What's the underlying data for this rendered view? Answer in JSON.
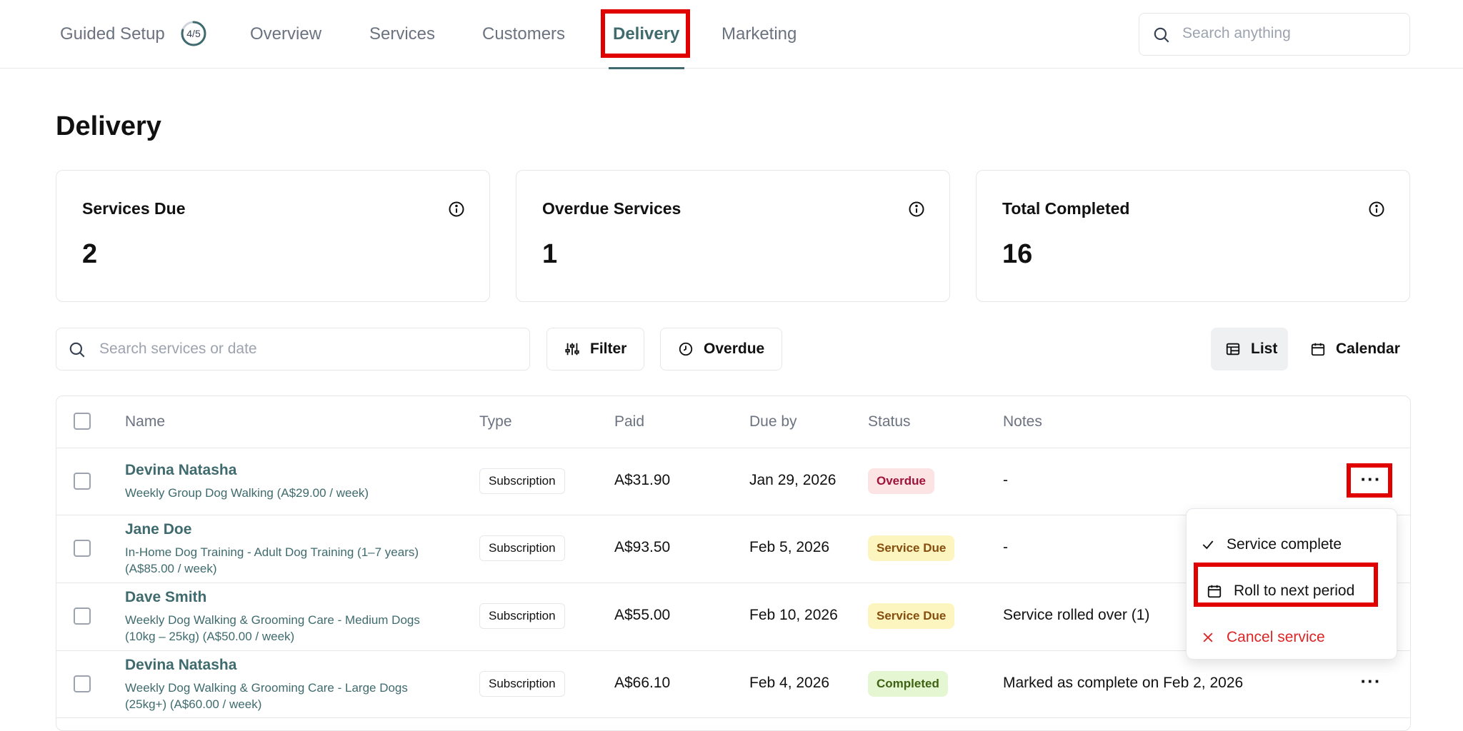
{
  "nav": {
    "items": [
      {
        "label": "Guided Setup"
      },
      {
        "label": "Overview"
      },
      {
        "label": "Services"
      },
      {
        "label": "Customers"
      },
      {
        "label": "Delivery"
      },
      {
        "label": "Marketing"
      }
    ],
    "setup_progress": "4/5",
    "setup_progress_fraction": 0.8,
    "active": "Delivery",
    "search_placeholder": "Search anything"
  },
  "page": {
    "title": "Delivery"
  },
  "stats": [
    {
      "title": "Services Due",
      "value": "2"
    },
    {
      "title": "Overdue Services",
      "value": "1"
    },
    {
      "title": "Total Completed",
      "value": "16"
    }
  ],
  "toolbar": {
    "search_placeholder": "Search services or date",
    "filter_label": "Filter",
    "overdue_label": "Overdue",
    "list_label": "List",
    "calendar_label": "Calendar"
  },
  "table": {
    "headers": {
      "name": "Name",
      "type": "Type",
      "paid": "Paid",
      "due_by": "Due by",
      "status": "Status",
      "notes": "Notes"
    },
    "rows": [
      {
        "name": "Devina Natasha",
        "service": "Weekly Group Dog Walking (A$29.00 / week)",
        "type": "Subscription",
        "paid": "A$31.90",
        "due_by": "Jan 29, 2026",
        "status": "Overdue",
        "notes": "-"
      },
      {
        "name": "Jane Doe",
        "service": "In-Home Dog Training - Adult Dog Training (1–7 years) (A$85.00 / week)",
        "type": "Subscription",
        "paid": "A$93.50",
        "due_by": "Feb 5, 2026",
        "status": "Service Due",
        "notes": "-"
      },
      {
        "name": "Dave Smith",
        "service": "Weekly Dog Walking & Grooming Care - Medium Dogs (10kg – 25kg) (A$50.00 / week)",
        "type": "Subscription",
        "paid": "A$55.00",
        "due_by": "Feb 10, 2026",
        "status": "Service Due",
        "notes": "Service rolled over (1)"
      },
      {
        "name": "Devina Natasha",
        "service": "Weekly Dog Walking & Grooming Care - Large Dogs (25kg+) (A$60.00 / week)",
        "type": "Subscription",
        "paid": "A$66.10",
        "due_by": "Feb 4, 2026",
        "status": "Completed",
        "notes": "Marked as complete on Feb 2, 2026"
      }
    ],
    "more_label": "···"
  },
  "menu": {
    "items": [
      {
        "label": "Service complete"
      },
      {
        "label": "Roll to next period"
      },
      {
        "label": "Cancel service"
      }
    ]
  },
  "colors": {
    "accent": "#3f6b6e",
    "highlight": "#e00000",
    "overdue_bg": "#fde4e4",
    "overdue_fg": "#9f1239",
    "due_bg": "#fdf5bf",
    "due_fg": "#854d0e",
    "completed_bg": "#e4f7d2",
    "completed_fg": "#3f6212",
    "danger": "#dc2626"
  }
}
